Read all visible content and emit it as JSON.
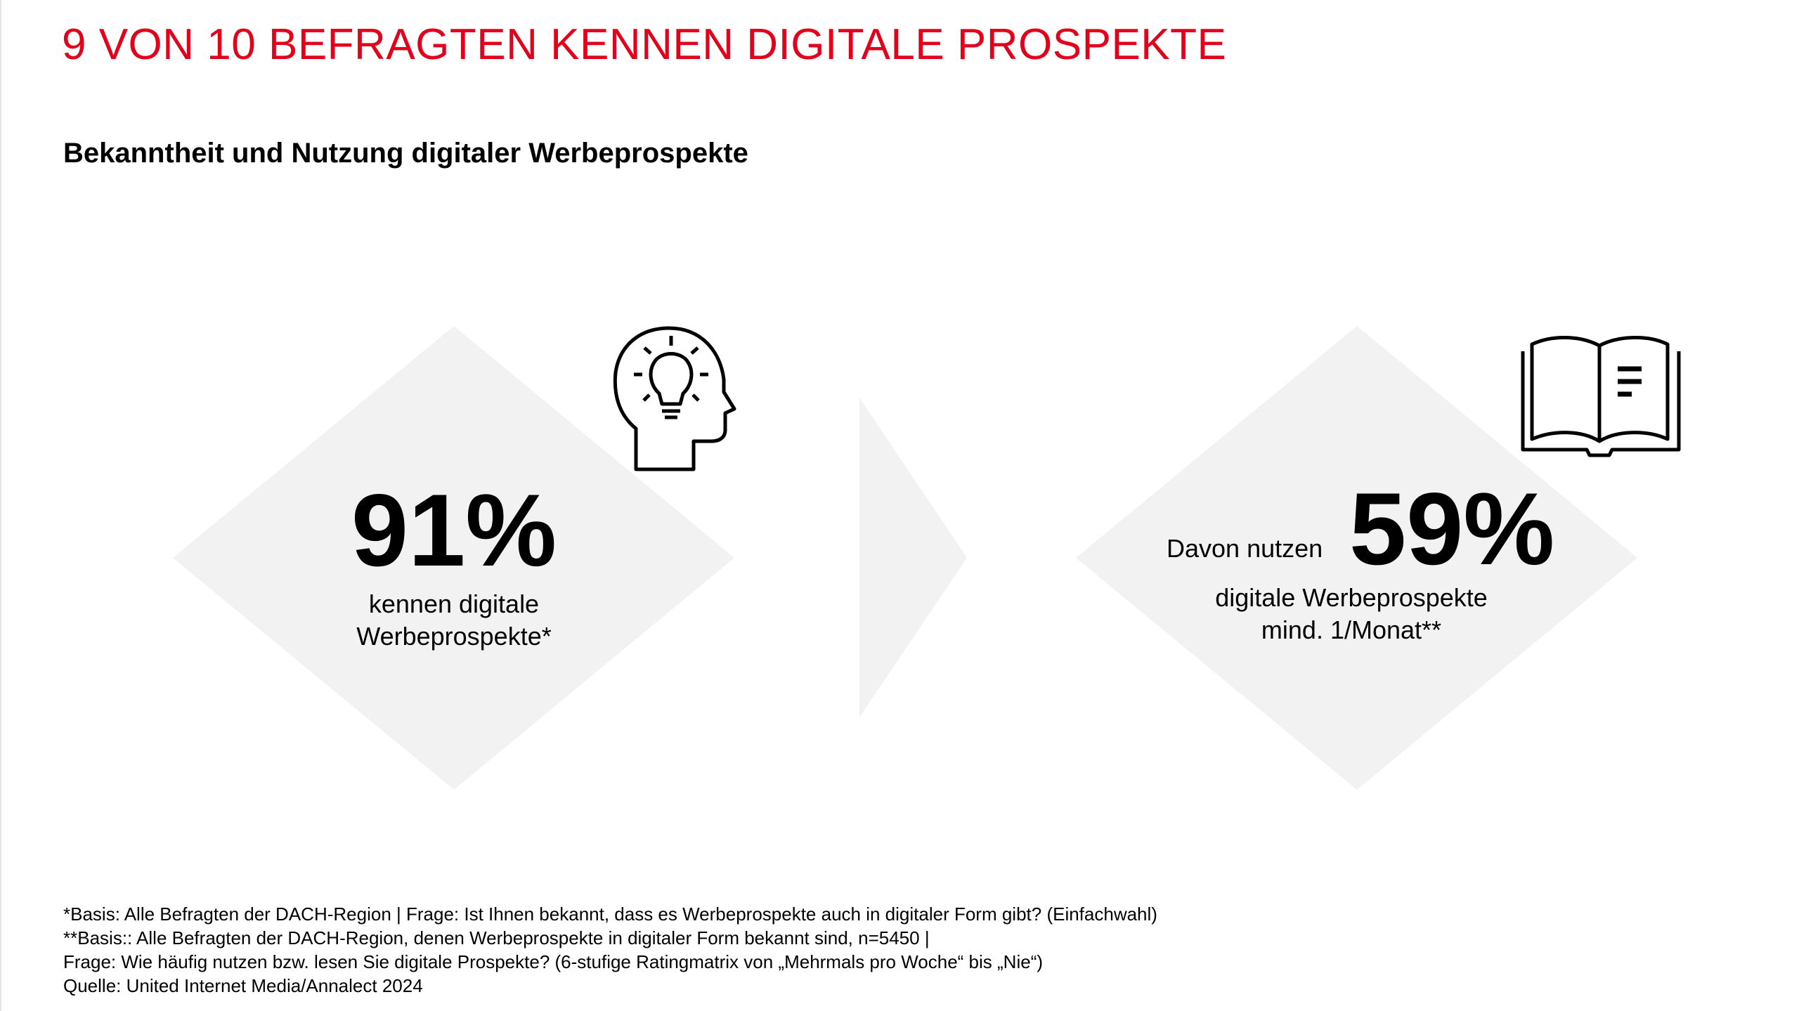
{
  "slide": {
    "title": "9 VON 10 BEFRAGTEN KENNEN DIGITALE PROSPEKTE",
    "subtitle": "Bekanntheit und Nutzung digitaler Werbeprospekte",
    "colors": {
      "accent": "#e2001a",
      "shape_fill": "#f2f2f2",
      "text": "#000000"
    }
  },
  "stat_left": {
    "value": "91%",
    "line1": "kennen digitale",
    "line2": "Werbeprospekte*",
    "icon": "head-lightbulb-icon"
  },
  "stat_right": {
    "prefix": "Davon nutzen",
    "value": "59%",
    "line1": "digitale Werbeprospekte",
    "line2": "mind. 1/Monat**",
    "icon": "open-book-icon"
  },
  "footnotes": [
    "*Basis: Alle Befragten der DACH-Region | Frage: Ist Ihnen bekannt, dass es Werbeprospekte auch in digitaler Form gibt? (Einfachwahl)",
    "**Basis:: Alle Befragten der DACH-Region, denen Werbeprospekte in digitaler Form bekannt sind, n=5450 |",
    "Frage: Wie häufig nutzen bzw. lesen Sie digitale Prospekte? (6-stufige Ratingmatrix von „Mehrmals pro Woche“ bis „Nie“)",
    "Quelle: United Internet Media/Annalect 2024"
  ]
}
